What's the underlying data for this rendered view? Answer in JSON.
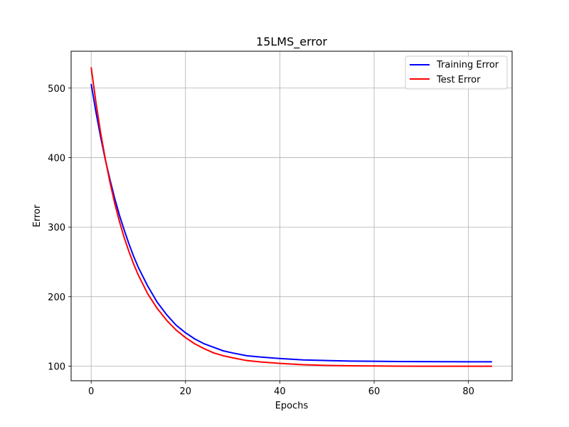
{
  "chart_data": {
    "type": "line",
    "title": "15LMS_error",
    "xlabel": "Epochs",
    "ylabel": "Error",
    "xlim": [
      -4.25,
      89.25
    ],
    "ylim": [
      79,
      553
    ],
    "xticks": [
      0,
      20,
      40,
      60,
      80
    ],
    "yticks": [
      100,
      200,
      300,
      400,
      500
    ],
    "grid": true,
    "legend_position": "top-right",
    "series": [
      {
        "name": "Training Error",
        "color": "#0000ff",
        "x": [
          0,
          1,
          2,
          3,
          4,
          5,
          6,
          7,
          8,
          9,
          10,
          12,
          14,
          16,
          18,
          20,
          22,
          24,
          26,
          28,
          30,
          33,
          36,
          40,
          45,
          50,
          55,
          60,
          65,
          70,
          75,
          80,
          85
        ],
        "y": [
          506,
          466,
          430,
          397,
          368,
          341,
          317,
          296,
          276,
          258,
          242,
          215,
          192,
          174,
          159,
          148,
          139,
          132,
          127,
          122,
          119,
          115,
          113,
          111,
          109,
          108,
          107.3,
          107,
          106.7,
          106.5,
          106.4,
          106.3,
          106.2
        ]
      },
      {
        "name": "Test Error",
        "color": "#ff0000",
        "x": [
          0,
          1,
          2,
          3,
          4,
          5,
          6,
          7,
          8,
          9,
          10,
          12,
          14,
          16,
          18,
          20,
          22,
          24,
          26,
          28,
          30,
          33,
          36,
          40,
          45,
          50,
          55,
          60,
          65,
          70,
          75,
          80,
          85
        ],
        "y": [
          530,
          480,
          436,
          398,
          364,
          334,
          308,
          285,
          265,
          247,
          231,
          204,
          183,
          166,
          152,
          141,
          132,
          125,
          119,
          115,
          112,
          108,
          106,
          104,
          102,
          101,
          100.5,
          100.2,
          100,
          99.9,
          99.8,
          99.8,
          99.8
        ]
      }
    ]
  }
}
